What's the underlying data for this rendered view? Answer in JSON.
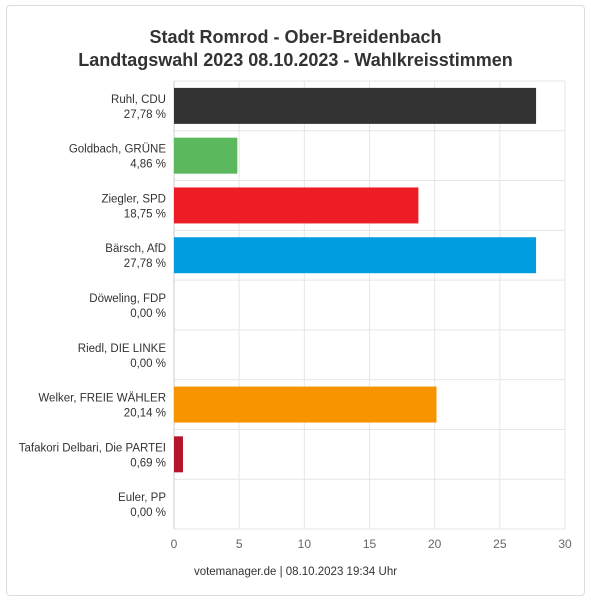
{
  "chart_data": {
    "type": "bar",
    "orientation": "horizontal",
    "title": "Stadt Romrod - Ober-Breidenbach",
    "subtitle": "Landtagswahl 2023 08.10.2023  - Wahlkreisstimmen",
    "categories": [
      "Ruhl, CDU",
      "Goldbach, GRÜNE",
      "Ziegler, SPD",
      "Bärsch, AfD",
      "Döweling, FDP",
      "Riedl, DIE LINKE",
      "Welker, FREIE WÄHLER",
      "Tafakori Delbari, Die PARTEI",
      "Euler, PP"
    ],
    "value_labels": [
      "27,78 %",
      "4,86 %",
      "18,75 %",
      "27,78 %",
      "0,00 %",
      "0,00 %",
      "20,14 %",
      "0,69 %",
      "0,00 %"
    ],
    "values": [
      27.78,
      4.86,
      18.75,
      27.78,
      0,
      0,
      20.14,
      0.69,
      0
    ],
    "colors": [
      "#333333",
      "#5cb85c",
      "#ee1c25",
      "#009ee0",
      "#ffed00",
      "#be3075",
      "#f79400",
      "#b5152b",
      "#ff8800"
    ],
    "xlim": [
      0,
      30
    ],
    "xticks": [
      "0",
      "5",
      "10",
      "15",
      "20",
      "25",
      "30"
    ],
    "grid": true
  },
  "footer": "votemanager.de | 08.10.2023 19:34 Uhr"
}
